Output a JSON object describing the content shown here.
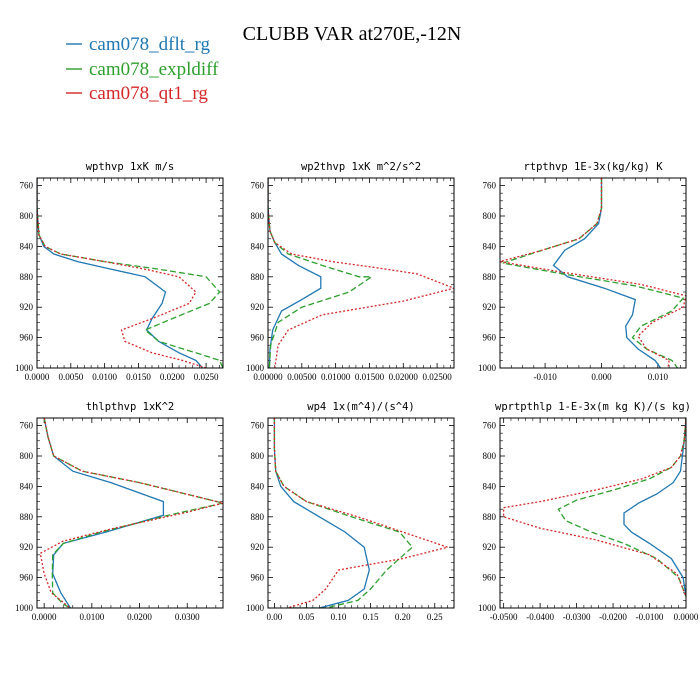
{
  "figure": {
    "title": "CLUBB VAR at270E,-12N",
    "legend": [
      {
        "label": "cam078_dflt_rg",
        "color": "#1f77b4",
        "dash": "solid"
      },
      {
        "label": "cam078_expldiff",
        "color": "#2ca02c",
        "dash": "dashed"
      },
      {
        "label": "cam078_qt1_rg",
        "color": "#d62728",
        "dash": "dotted"
      }
    ]
  },
  "chart_data": [
    {
      "type": "line",
      "title": "wpthvp  1xK m/s",
      "xlim": [
        0,
        0.0275
      ],
      "ylim": [
        1000,
        750
      ],
      "xticks": [
        0,
        0.005,
        0.01,
        0.015,
        0.02,
        0.025
      ],
      "xtick_labels": [
        "0.0000",
        "0.0050",
        "0.0100",
        "0.0150",
        "0.0200",
        "0.0250"
      ],
      "yticks": [
        760,
        800,
        840,
        880,
        920,
        960,
        1000
      ],
      "series": [
        {
          "name": "cam078_dflt_rg",
          "x": [
            0,
            0,
            0.0003,
            0.001,
            0.0025,
            0.006,
            0.011,
            0.016,
            0.019,
            0.0185,
            0.017,
            0.0162,
            0.018,
            0.021,
            0.0235,
            0.0245
          ],
          "y": [
            750,
            790,
            825,
            840,
            850,
            860,
            870,
            880,
            900,
            915,
            935,
            950,
            965,
            980,
            990,
            1000
          ]
        },
        {
          "name": "cam078_expldiff",
          "x": [
            0,
            0,
            0.0003,
            0.0012,
            0.0035,
            0.01,
            0.018,
            0.025,
            0.027,
            0.0255,
            0.02,
            0.016,
            0.018,
            0.0235,
            0.027,
            0.0275
          ],
          "y": [
            750,
            790,
            825,
            840,
            850,
            860,
            870,
            880,
            900,
            915,
            935,
            950,
            965,
            980,
            990,
            1000
          ]
        },
        {
          "name": "cam078_qt1_rg",
          "x": [
            0,
            0,
            0.0003,
            0.0012,
            0.0035,
            0.01,
            0.016,
            0.021,
            0.0235,
            0.0225,
            0.017,
            0.0125,
            0.013,
            0.017,
            0.0215,
            0.025
          ],
          "y": [
            750,
            790,
            825,
            840,
            850,
            860,
            870,
            880,
            900,
            915,
            935,
            950,
            965,
            980,
            990,
            1000
          ]
        }
      ]
    },
    {
      "type": "line",
      "title": "wp2thvp  1xK m^2/s^2",
      "xlim": [
        0,
        0.0275
      ],
      "ylim": [
        1000,
        750
      ],
      "xticks": [
        0,
        0.005,
        0.01,
        0.015,
        0.02,
        0.025
      ],
      "xtick_labels": [
        "0.00000",
        "0.00500",
        "0.01000",
        "0.01500",
        "0.02000",
        "0.02500"
      ],
      "yticks": [
        760,
        800,
        840,
        880,
        920,
        960,
        1000
      ],
      "series": [
        {
          "name": "cam078_dflt_rg",
          "x": [
            0,
            0,
            0.0003,
            0.001,
            0.002,
            0.0045,
            0.0078,
            0.0078,
            0.005,
            0.002,
            0.0007,
            0.0003,
            0.0002
          ],
          "y": [
            750,
            790,
            820,
            835,
            850,
            865,
            880,
            895,
            910,
            925,
            950,
            975,
            1000
          ]
        },
        {
          "name": "cam078_expldiff",
          "x": [
            0,
            0,
            0.0003,
            0.001,
            0.003,
            0.008,
            0.0135,
            0.0153,
            0.012,
            0.005,
            0.0015,
            0.0004,
            0.0002
          ],
          "y": [
            750,
            790,
            820,
            835,
            850,
            865,
            880,
            880,
            900,
            920,
            940,
            970,
            1000
          ]
        },
        {
          "name": "cam078_qt1_rg",
          "x": [
            0,
            0,
            0.0003,
            0.001,
            0.0035,
            0.0095,
            0.016,
            0.022,
            0.0275,
            0.02,
            0.008,
            0.003,
            0.0015,
            0.001
          ],
          "y": [
            750,
            790,
            820,
            835,
            850,
            860,
            868,
            876,
            895,
            912,
            930,
            950,
            970,
            1000
          ]
        }
      ]
    },
    {
      "type": "line",
      "title": "rtpthvp  1E-3x(kg/kg) K",
      "xlim": [
        -0.018,
        0.015
      ],
      "ylim": [
        1000,
        750
      ],
      "xticks": [
        -0.01,
        0,
        0.01
      ],
      "xtick_labels": [
        "-0.010",
        "0.000",
        "0.010"
      ],
      "yticks": [
        760,
        800,
        840,
        880,
        920,
        960,
        1000
      ],
      "series": [
        {
          "name": "cam078_dflt_rg",
          "x": [
            0,
            0,
            -0.0005,
            -0.003,
            -0.0065,
            -0.0085,
            -0.006,
            0.0005,
            0.006,
            0.0055,
            0.0043,
            0.0045,
            0.0065,
            0.0095,
            0.0105
          ],
          "y": [
            750,
            790,
            810,
            830,
            845,
            865,
            880,
            895,
            910,
            930,
            945,
            960,
            975,
            990,
            1000
          ]
        },
        {
          "name": "cam078_expldiff",
          "x": [
            0,
            0,
            -0.0008,
            -0.004,
            -0.0105,
            -0.0175,
            -0.007,
            0.006,
            0.0145,
            0.0125,
            0.007,
            0.0055,
            0.008,
            0.0125,
            0.0135
          ],
          "y": [
            750,
            790,
            810,
            830,
            845,
            862,
            876,
            892,
            908,
            925,
            945,
            960,
            975,
            990,
            1000
          ]
        },
        {
          "name": "cam078_qt1_rg",
          "x": [
            0,
            0,
            -0.0008,
            -0.004,
            -0.0105,
            -0.018,
            -0.007,
            0.007,
            0.015,
            0.0145,
            0.009,
            0.0065,
            0.008,
            0.012,
            0.0118
          ],
          "y": [
            750,
            790,
            810,
            830,
            845,
            860,
            874,
            890,
            905,
            920,
            940,
            958,
            975,
            990,
            1000
          ]
        }
      ]
    },
    {
      "type": "line",
      "title": "thlpthvp  1xK^2",
      "xlim": [
        -0.0015,
        0.0375
      ],
      "ylim": [
        1000,
        750
      ],
      "xticks": [
        0,
        0.01,
        0.02,
        0.03
      ],
      "xtick_labels": [
        "0.0000",
        "0.0100",
        "0.0200",
        "0.0300"
      ],
      "yticks": [
        760,
        800,
        840,
        880,
        920,
        960,
        1000
      ],
      "series": [
        {
          "name": "cam078_dflt_rg",
          "x": [
            0,
            0.0008,
            0.002,
            0.006,
            0.014,
            0.025,
            0.025,
            0.013,
            0.004,
            0.002,
            0.0018,
            0.0035,
            0.005,
            0.0055
          ],
          "y": [
            750,
            775,
            800,
            820,
            835,
            860,
            878,
            900,
            915,
            930,
            955,
            980,
            995,
            1000
          ]
        },
        {
          "name": "cam078_expldiff",
          "x": [
            0,
            0.0008,
            0.002,
            0.008,
            0.02,
            0.0375,
            0.026,
            0.012,
            0.004,
            0.0018,
            0.0017,
            0.0018,
            0.004,
            0.0055
          ],
          "y": [
            750,
            775,
            800,
            820,
            835,
            862,
            878,
            900,
            915,
            930,
            955,
            980,
            995,
            1000
          ]
        },
        {
          "name": "cam078_qt1_rg",
          "x": [
            0,
            0.0008,
            0.002,
            0.008,
            0.02,
            0.0375,
            0.03,
            0.014,
            0.004,
            -0.0008,
            0,
            0.0015,
            0.0045,
            0.0055
          ],
          "y": [
            750,
            775,
            800,
            820,
            835,
            862,
            874,
            896,
            912,
            928,
            955,
            980,
            995,
            1000
          ]
        }
      ]
    },
    {
      "type": "line",
      "title": "wp4  1x(m^4)/(s^4)",
      "xlim": [
        -0.01,
        0.28
      ],
      "ylim": [
        1000,
        750
      ],
      "xticks": [
        0,
        0.05,
        0.1,
        0.15,
        0.2,
        0.25
      ],
      "xtick_labels": [
        "0.00",
        "0.05",
        "0.10",
        "0.15",
        "0.20",
        "0.25"
      ],
      "yticks": [
        760,
        800,
        840,
        880,
        920,
        960,
        1000
      ],
      "series": [
        {
          "name": "cam078_dflt_rg",
          "x": [
            0,
            0,
            0.002,
            0.01,
            0.03,
            0.07,
            0.11,
            0.14,
            0.148,
            0.14,
            0.115,
            0.07,
            0.02
          ],
          "y": [
            750,
            790,
            820,
            840,
            860,
            880,
            900,
            920,
            950,
            975,
            990,
            1000,
            1000
          ]
        },
        {
          "name": "cam078_expldiff",
          "x": [
            0,
            0,
            0.002,
            0.015,
            0.05,
            0.12,
            0.195,
            0.215,
            0.175,
            0.15,
            0.13,
            0.08,
            0.02
          ],
          "y": [
            750,
            790,
            820,
            840,
            860,
            880,
            900,
            920,
            950,
            975,
            990,
            1000,
            1000
          ]
        },
        {
          "name": "cam078_qt1_rg",
          "x": [
            0,
            0,
            0.002,
            0.015,
            0.05,
            0.13,
            0.2,
            0.27,
            0.2,
            0.1,
            0.08,
            0.06,
            0.02
          ],
          "y": [
            750,
            790,
            820,
            840,
            860,
            880,
            900,
            920,
            935,
            950,
            975,
            990,
            1000
          ]
        }
      ]
    },
    {
      "type": "line",
      "title": "wprtpthlp  1-E-3x(m kg K)/(s kg)",
      "xlim": [
        -0.051,
        0
      ],
      "ylim": [
        1000,
        750
      ],
      "xticks": [
        -0.05,
        -0.04,
        -0.03,
        -0.02,
        -0.01,
        0
      ],
      "xtick_labels": [
        "-0.0500",
        "-0.0400",
        "-0.0300",
        "-0.0200",
        "-0.0100",
        "0.0000"
      ],
      "yticks": [
        760,
        800,
        840,
        880,
        920,
        960,
        1000
      ],
      "series": [
        {
          "name": "cam078_dflt_rg",
          "x": [
            0,
            -0.0005,
            -0.001,
            -0.0015,
            -0.0035,
            -0.008,
            -0.013,
            -0.017,
            -0.017,
            -0.015,
            -0.01,
            -0.004,
            -0.0008,
            0
          ],
          "y": [
            750,
            780,
            800,
            820,
            835,
            850,
            862,
            875,
            890,
            900,
            915,
            935,
            960,
            985
          ]
        },
        {
          "name": "cam078_expldiff",
          "x": [
            0,
            -0.0005,
            -0.0015,
            -0.004,
            -0.01,
            -0.02,
            -0.03,
            -0.035,
            -0.033,
            -0.026,
            -0.017,
            -0.008,
            -0.002,
            0
          ],
          "y": [
            750,
            780,
            800,
            815,
            830,
            845,
            858,
            870,
            885,
            900,
            915,
            935,
            960,
            985
          ]
        },
        {
          "name": "cam078_qt1_rg",
          "x": [
            0,
            -0.0005,
            -0.0015,
            -0.004,
            -0.012,
            -0.025,
            -0.04,
            -0.05,
            -0.05,
            -0.04,
            -0.025,
            -0.01,
            -0.0025,
            0
          ],
          "y": [
            750,
            780,
            800,
            815,
            830,
            845,
            860,
            868,
            880,
            895,
            910,
            930,
            955,
            985
          ]
        }
      ]
    }
  ]
}
